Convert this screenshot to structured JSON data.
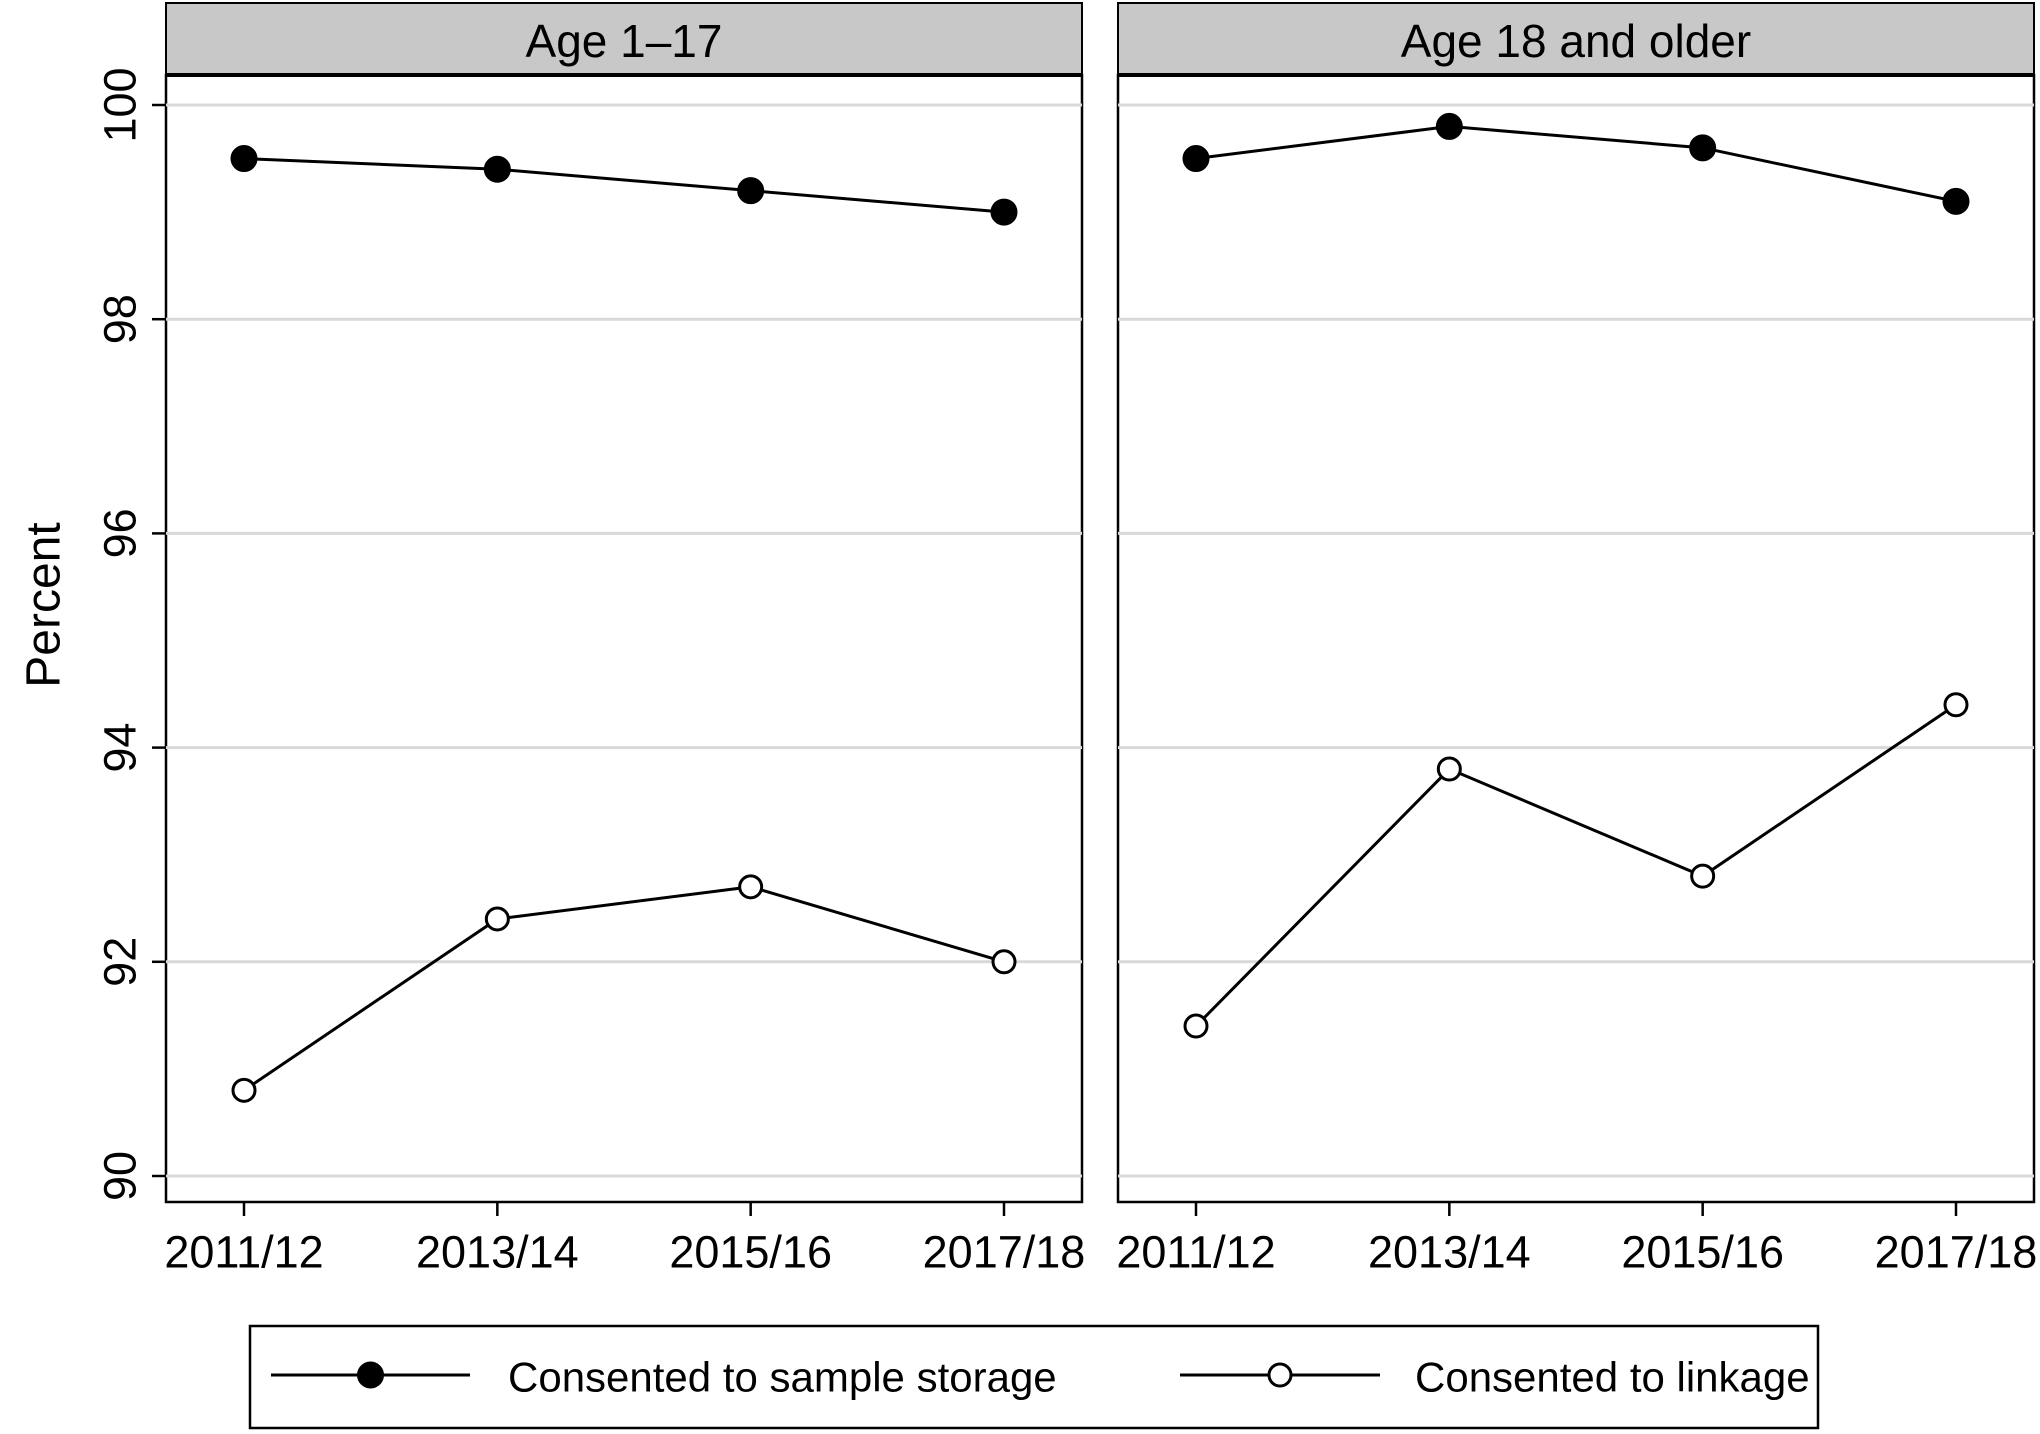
{
  "chart_data": {
    "type": "line",
    "ylabel": "Percent",
    "ylim": [
      90,
      100
    ],
    "yticks": [
      90,
      92,
      94,
      96,
      98,
      100
    ],
    "categories": [
      "2011/12",
      "2013/14",
      "2015/16",
      "2017/18"
    ],
    "grid": true,
    "legend_position": "bottom",
    "panels": [
      {
        "title": "Age 1–17",
        "series": [
          {
            "name": "Consented to sample storage",
            "marker": "filled-circle",
            "values": [
              99.5,
              99.4,
              99.2,
              99.0
            ]
          },
          {
            "name": "Consented to linkage",
            "marker": "hollow-circle",
            "values": [
              90.8,
              92.4,
              92.7,
              92.0
            ]
          }
        ]
      },
      {
        "title": "Age 18 and older",
        "series": [
          {
            "name": "Consented to sample storage",
            "marker": "filled-circle",
            "values": [
              99.5,
              99.8,
              99.6,
              99.1
            ]
          },
          {
            "name": "Consented to linkage",
            "marker": "hollow-circle",
            "values": [
              91.4,
              93.8,
              92.8,
              94.4
            ]
          }
        ]
      }
    ],
    "legend": [
      {
        "label": "Consented to sample storage",
        "marker": "filled-circle"
      },
      {
        "label": "Consented to linkage",
        "marker": "hollow-circle"
      }
    ],
    "colors": {
      "line": "#000000",
      "grid": "#d9d9d9",
      "header_fill": "#c8c8c8"
    }
  }
}
